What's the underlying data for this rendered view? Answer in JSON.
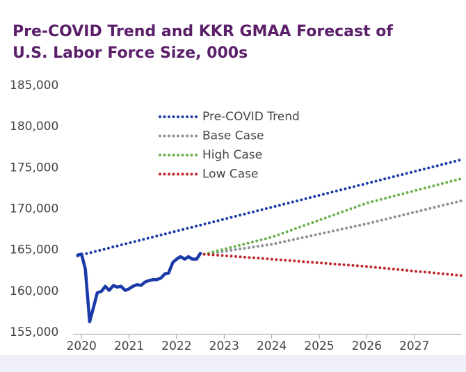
{
  "chart_data": {
    "type": "line",
    "title": [
      "Pre-COVID Trend and KKR GMAA Forecast of",
      "U.S. Labor Force Size, 000s"
    ],
    "xlim": [
      2019.85,
      2028
    ],
    "xticks": [
      2020,
      2021,
      2022,
      2023,
      2024,
      2025,
      2026,
      2027
    ],
    "ylim": [
      155000,
      185000
    ],
    "yticks": [
      {
        "value": 155000,
        "label": "155,000"
      },
      {
        "value": 160000,
        "label": "160,000"
      },
      {
        "value": 165000,
        "label": "165,000"
      },
      {
        "value": 170000,
        "label": "170,000"
      },
      {
        "value": 175000,
        "label": "175,000"
      },
      {
        "value": 180000,
        "label": "180,000"
      },
      {
        "value": 185000,
        "label": "185,000"
      }
    ],
    "series": [
      {
        "color": "#1a3aa8",
        "style": "solid",
        "x": [
          2019.92,
          2020.0,
          2020.08,
          2020.17,
          2020.25,
          2020.33,
          2020.42,
          2020.5,
          2020.58,
          2020.67,
          2020.75,
          2020.83,
          2020.92,
          2021.0,
          2021.08,
          2021.17,
          2021.25,
          2021.33,
          2021.42,
          2021.5,
          2021.58,
          2021.67,
          2021.75,
          2021.83,
          2021.92,
          2022.0,
          2022.08,
          2022.17,
          2022.25,
          2022.33,
          2022.42,
          2022.5
        ],
        "values": [
          164400,
          164500,
          162700,
          156300,
          158000,
          159800,
          160000,
          160600,
          160100,
          160700,
          160500,
          160600,
          160100,
          160300,
          160600,
          160800,
          160700,
          161100,
          161300,
          161400,
          161400,
          161600,
          162100,
          162200,
          163500,
          163900,
          164200,
          163900,
          164200,
          163900,
          163900,
          164600
        ]
      },
      {
        "name": "Pre-COVID Trend",
        "color": "#1a3aa8",
        "style": "dotted",
        "x": [
          2019.92,
          2028
        ],
        "values": [
          164300,
          176000
        ]
      },
      {
        "name": "Base Case",
        "color": "#8c8f96",
        "style": "dotted",
        "x": [
          2022.58,
          2024,
          2026,
          2028
        ],
        "values": [
          164500,
          165700,
          168200,
          171000
        ]
      },
      {
        "name": "High Case",
        "color": "#6ab04c",
        "style": "dotted",
        "x": [
          2022.58,
          2024,
          2026,
          2028
        ],
        "values": [
          164500,
          166570,
          170710,
          173700
        ]
      },
      {
        "name": "Low Case",
        "color": "#c0282d",
        "style": "dotted",
        "x": [
          2022.58,
          2024,
          2026,
          2028
        ],
        "values": [
          164500,
          163900,
          163000,
          161900
        ]
      }
    ]
  }
}
